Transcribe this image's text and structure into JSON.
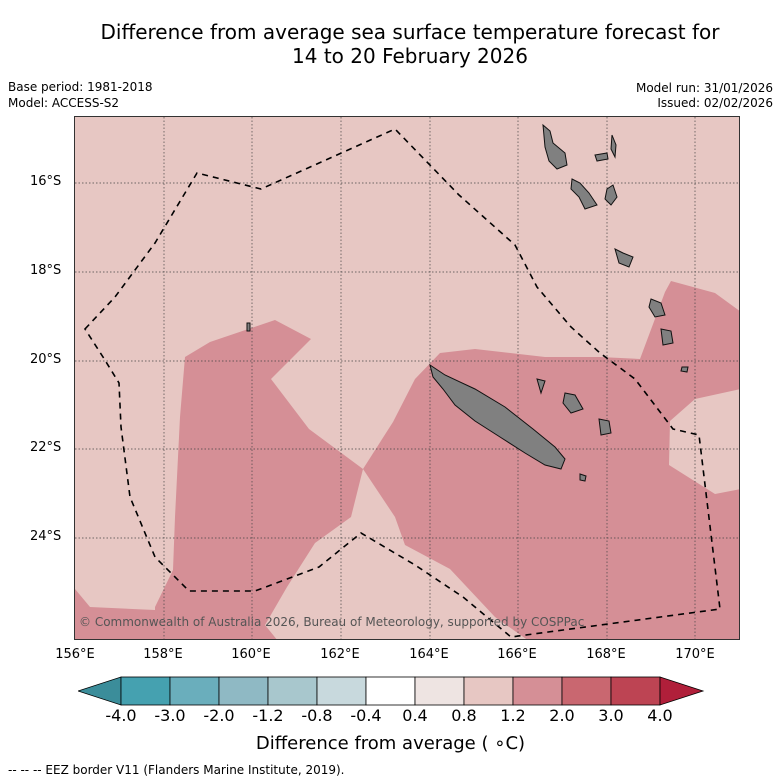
{
  "header": {
    "title_line1": "Difference from average sea surface temperature forecast for",
    "title_line2": "14 to 20 February 2026",
    "base_period": "Base period: 1981-2018",
    "model": "Model: ACCESS-S2",
    "model_run": "Model run: 31/01/2026",
    "issued": "Issued: 02/02/2026"
  },
  "map": {
    "lat_labels": [
      "16°S",
      "18°S",
      "20°S",
      "22°S",
      "24°S"
    ],
    "lon_labels": [
      "156°E",
      "158°E",
      "160°E",
      "162°E",
      "164°E",
      "166°E",
      "168°E",
      "170°E"
    ],
    "credit": "© Commonwealth of Australia 2026, Bureau of Meteorology, supported by COSPPac",
    "colors": {
      "anom_0_4_to_0_8": "#eee4e2",
      "anom_0_8_to_1_2": "#e7c7c3",
      "anom_1_2_to_2_0": "#d58f96",
      "land": "#808080"
    }
  },
  "colorbar": {
    "ticks": [
      "-4.0",
      "-3.0",
      "-2.0",
      "-1.2",
      "-0.8",
      "-0.4",
      "0.4",
      "0.8",
      "1.2",
      "2.0",
      "3.0",
      "4.0"
    ],
    "colors": [
      "#3b8d9a",
      "#45a1b0",
      "#6aaebc",
      "#8fb9c4",
      "#a8c7cd",
      "#c8d9dd",
      "#ffffff",
      "#eee4e2",
      "#e7c7c3",
      "#d58f96",
      "#c96770",
      "#bd4453",
      "#b01f3a"
    ],
    "title": "Difference from average ( ∘C)"
  },
  "legend": {
    "eez_label": "--  --  -- EEZ border V11 (Flanders Marine Institute, 2019)."
  }
}
